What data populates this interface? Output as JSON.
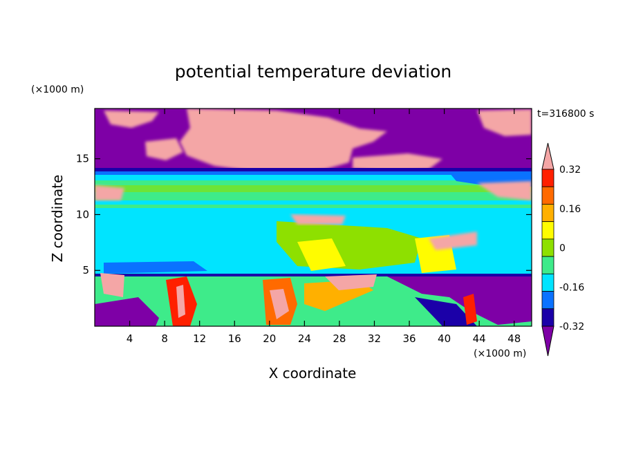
{
  "chart_data": {
    "type": "heatmap",
    "title": "potential temperature deviation",
    "xlabel": "X coordinate",
    "ylabel": "Z coordinate",
    "x_unit": "(×1000 m)",
    "y_unit": "(×1000 m)",
    "time_label": "t=316800 s",
    "xlim": [
      0,
      50
    ],
    "ylim": [
      0,
      19.5
    ],
    "x_ticks": [
      4,
      8,
      12,
      16,
      20,
      24,
      28,
      32,
      36,
      40,
      44,
      48
    ],
    "y_ticks": [
      5,
      10,
      15
    ],
    "x_tick_labels": [
      "4",
      "8",
      "12",
      "16",
      "20",
      "24",
      "28",
      "32",
      "36",
      "40",
      "44",
      "48"
    ],
    "y_tick_labels": [
      "5",
      "10",
      "15"
    ],
    "colorbar": {
      "levels": [
        -0.4,
        -0.32,
        -0.24,
        -0.16,
        -0.08,
        0,
        0.08,
        0.16,
        0.24,
        0.32,
        0.4
      ],
      "labels": [
        "0.32",
        "0.16",
        "0",
        "-0.16",
        "-0.32"
      ],
      "label_values": [
        0.32,
        0.16,
        0,
        -0.16,
        -0.32
      ],
      "colors": [
        "#7e00a6",
        "#1b00a8",
        "#0a72ff",
        "#00e4ff",
        "#3eeb8a",
        "#8ee000",
        "#fffc00",
        "#ffb000",
        "#ff6a00",
        "#ff2000",
        "#f4a6a6"
      ],
      "extend": "both"
    },
    "regions": [
      {
        "zmin": 14.2,
        "zmax": 19.5,
        "value": -0.45
      },
      {
        "zmin": 10.8,
        "zmax": 14.2,
        "value": 0.0
      },
      {
        "zmin": 5.0,
        "zmax": 10.8,
        "value": -0.1
      },
      {
        "zmin": 0.0,
        "zmax": 5.0,
        "value": 0.1
      }
    ]
  }
}
